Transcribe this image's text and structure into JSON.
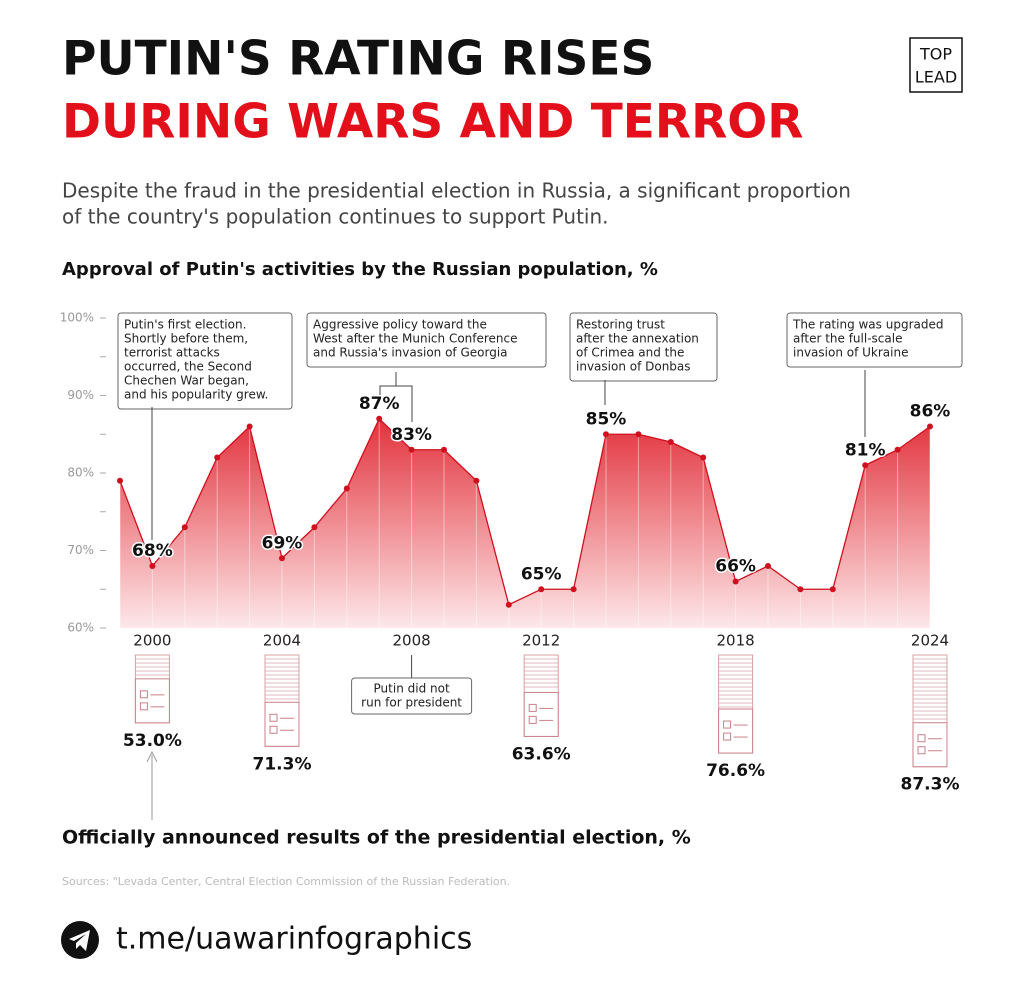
{
  "header": {
    "title_line1": "PUTIN'S RATING RISES",
    "title_line2": "DURING WARS AND TERROR",
    "logo": [
      "TOP",
      "LEAD"
    ],
    "subtitle": [
      "Despite the fraud in the presidential election in Russia, a significant proportion",
      "of the country's population continues to support Putin."
    ]
  },
  "chart_data": {
    "type": "area",
    "title": "Approval of Putin's activities by the Russian population, %",
    "x": [
      1999,
      2000,
      2001,
      2002,
      2003,
      2004,
      2005,
      2006,
      2007,
      2008,
      2009,
      2010,
      2011,
      2012,
      2013,
      2014,
      2015,
      2016,
      2017,
      2018,
      2019,
      2020,
      2021,
      2022,
      2023,
      2024
    ],
    "values": [
      79,
      68,
      73,
      82,
      86,
      69,
      73,
      78,
      87,
      83,
      83,
      79,
      63,
      65,
      65,
      85,
      85,
      84,
      82,
      66,
      68,
      65,
      65,
      81,
      83,
      86
    ],
    "value_labels": [
      null,
      "68%",
      null,
      null,
      null,
      "69%",
      null,
      null,
      "87%",
      "83%",
      null,
      null,
      null,
      "65%",
      null,
      "85%",
      null,
      null,
      null,
      "66%",
      null,
      null,
      null,
      "81%",
      null,
      "86%"
    ],
    "xlim": [
      1999,
      2024
    ],
    "xticks": [
      2000,
      2004,
      2008,
      2012,
      2018,
      2024
    ],
    "ylim": [
      60,
      100
    ],
    "yticks": [
      {
        "value": 60,
        "label": "60%"
      },
      {
        "value": 70,
        "label": "70%"
      },
      {
        "value": 80,
        "label": "80%"
      },
      {
        "value": 90,
        "label": "90%"
      },
      {
        "value": 100,
        "label": "100%"
      }
    ],
    "yticks_minor": [
      65,
      75,
      85,
      95
    ],
    "color": "#d0101e",
    "annotations": [
      {
        "lines": [
          "Putin's first election.",
          "Shortly before them,",
          "terrorist attacks",
          "occurred, the Second",
          "Chechen War began,",
          "and his popularity grew."
        ]
      },
      {
        "lines": [
          "Aggressive policy toward the",
          "West after the Munich Conference",
          "and Russia's invasion of Georgia"
        ]
      },
      {
        "lines": [
          "Restoring trust",
          "after the annexation",
          "of Crimea and the",
          "invasion of Donbas"
        ]
      },
      {
        "lines": [
          "The rating was upgraded",
          "after the full-scale",
          "invasion of Ukraine"
        ]
      }
    ]
  },
  "elections": {
    "title": "Officially announced results of the presidential election, %",
    "years": [
      2000,
      2004,
      2008,
      2012,
      2018,
      2024
    ],
    "values": [
      53.0,
      71.3,
      null,
      63.6,
      76.6,
      87.3
    ],
    "value_labels": [
      "53.0%",
      "71.3%",
      null,
      "63.6%",
      "76.6%",
      "87.3%"
    ],
    "note": [
      "Putin did not",
      "run for president"
    ]
  },
  "footer": {
    "sources": "Sources: \"Levada Center, Central Election Commission of the Russian Federation.",
    "link": "t.me/uawarinfographics"
  }
}
